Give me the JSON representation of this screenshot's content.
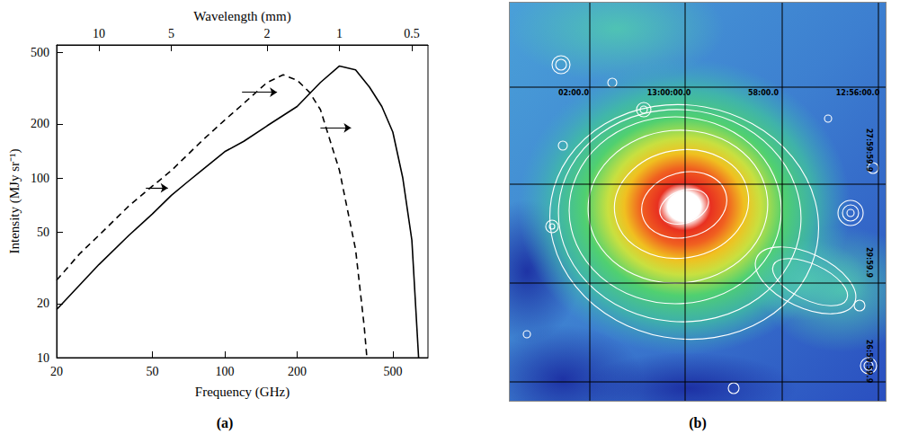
{
  "chart_data": {
    "type": "line",
    "caption": "(a)",
    "x_label": "Frequency (GHz)",
    "x2_label": "Wavelength (mm)",
    "y_label": "Intensity (MJy sr⁻¹)",
    "log": true,
    "grid": false,
    "xlim": [
      20,
      700
    ],
    "xticks": [
      20,
      50,
      100,
      200,
      500
    ],
    "x2lim": [
      20,
      700
    ],
    "x2ticks": [
      {
        "value": 30,
        "label": "10"
      },
      {
        "value": 60,
        "label": "5"
      },
      {
        "value": 150,
        "label": "2"
      },
      {
        "value": 300,
        "label": "1"
      },
      {
        "value": 600,
        "label": "0.5"
      }
    ],
    "ylim": [
      10,
      550
    ],
    "yticks": [
      10,
      20,
      50,
      100,
      200,
      500
    ],
    "series": [
      {
        "color": "#000000",
        "line_style": "solid",
        "x": [
          20,
          30,
          40,
          50,
          60,
          70,
          80,
          100,
          120,
          150,
          200,
          250,
          300,
          350,
          400,
          450,
          500,
          550,
          600,
          640
        ],
        "values": [
          18.5,
          33,
          48,
          63,
          80,
          95,
          110,
          140,
          160,
          195,
          250,
          340,
          420,
          400,
          320,
          250,
          180,
          100,
          45,
          10
        ]
      },
      {
        "color": "#000000",
        "line_style": "dashed",
        "x": [
          20,
          25,
          30,
          40,
          50,
          60,
          80,
          100,
          120,
          150,
          175,
          200,
          225,
          250,
          300,
          350,
          380,
          390
        ],
        "values": [
          27,
          38,
          48,
          70,
          90,
          110,
          160,
          210,
          260,
          340,
          375,
          350,
          300,
          240,
          110,
          40,
          15,
          10
        ]
      }
    ],
    "arrows": [
      {
        "x": [
          47,
          58
        ],
        "y": 88
      },
      {
        "x": [
          118,
          165
        ],
        "y": 300
      },
      {
        "x": [
          250,
          335
        ],
        "y": 190
      }
    ]
  },
  "image_panel": {
    "caption": "(b)",
    "ra_labels": [
      "02:00.0",
      "13:00:00.0",
      "58:00.0",
      "12:56:00.0"
    ],
    "dec_labels": [
      "27:59:59.9",
      "29:59.9",
      "26:59:59.9"
    ]
  }
}
